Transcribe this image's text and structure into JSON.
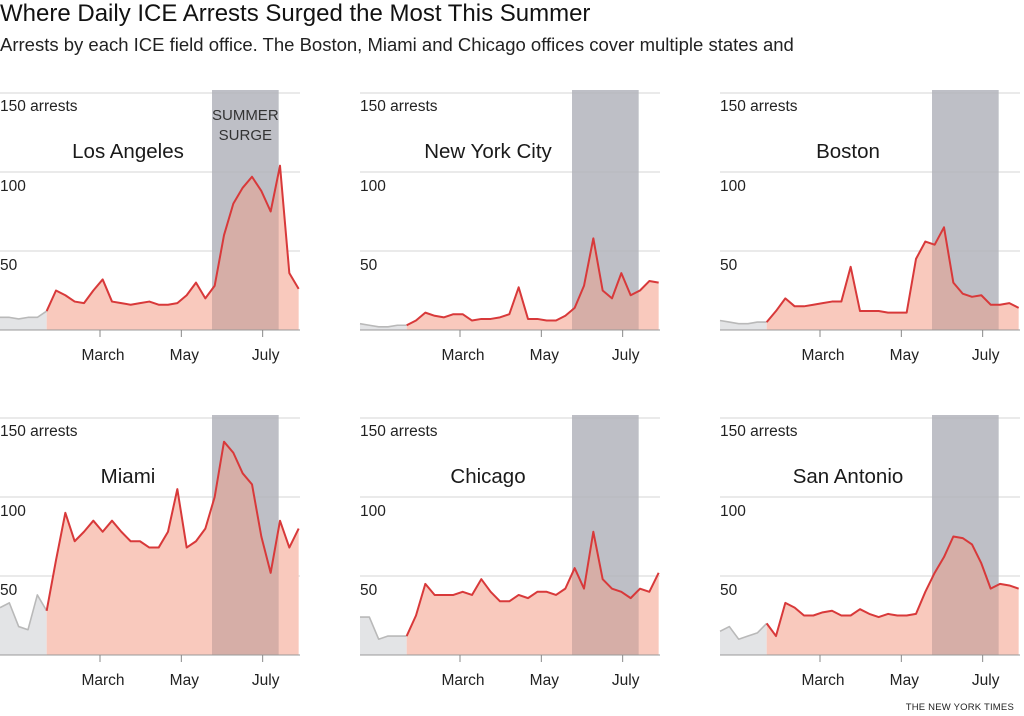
{
  "header": {
    "title": "Where Daily ICE Arrests Surged the Most This Summer",
    "subtitle": "Arrests by each ICE field office. The Boston, Miami and Chicago offices cover multiple states and"
  },
  "credit": "THE NEW YORK TIMES",
  "colors": {
    "line": "#d8393a",
    "fill": "#f9c9bd",
    "pre_line": "#b9b9b9",
    "pre_fill": "#e3e4e6",
    "surge_band": "#dcdde1",
    "grid": "#d6d6d6"
  },
  "chart_data": {
    "type": "area",
    "layout": "small multiples, 2 rows x 3 columns",
    "ylim": [
      0,
      150
    ],
    "yticks": [
      50,
      100,
      150
    ],
    "ytick_labels": [
      "50",
      "100",
      "150 arrests"
    ],
    "xticks": [
      "Mar 1",
      "May 1",
      "Jul 1"
    ],
    "xtick_labels": [
      "March",
      "May",
      "July"
    ],
    "grid": true,
    "highlight": {
      "label": "SUMMER SURGE",
      "start": "May 24",
      "end": "Jul 13"
    },
    "gray_until": "Jan 20",
    "x": [
      "Dec 16",
      "Dec 23",
      "Dec 30",
      "Jan 6",
      "Jan 13",
      "Jan 20",
      "Jan 27",
      "Feb 3",
      "Feb 10",
      "Feb 17",
      "Feb 24",
      "Mar 3",
      "Mar 10",
      "Mar 17",
      "Mar 24",
      "Mar 31",
      "Apr 7",
      "Apr 14",
      "Apr 21",
      "Apr 28",
      "May 5",
      "May 12",
      "May 19",
      "May 26",
      "Jun 2",
      "Jun 9",
      "Jun 16",
      "Jun 23",
      "Jun 30",
      "Jul 7",
      "Jul 14",
      "Jul 21",
      "Jul 28"
    ],
    "panels": [
      {
        "name": "Los Angeles",
        "values": [
          8,
          8,
          7,
          8,
          8,
          12,
          25,
          22,
          18,
          17,
          25,
          32,
          18,
          17,
          16,
          17,
          18,
          16,
          16,
          17,
          22,
          30,
          20,
          28,
          60,
          80,
          90,
          97,
          88,
          75,
          104,
          36,
          26
        ]
      },
      {
        "name": "New York City",
        "values": [
          4,
          3,
          2,
          2,
          3,
          3,
          6,
          11,
          9,
          8,
          10,
          10,
          6,
          7,
          7,
          8,
          10,
          27,
          7,
          7,
          6,
          6,
          9,
          14,
          28,
          58,
          25,
          20,
          36,
          22,
          25,
          31,
          30
        ]
      },
      {
        "name": "Boston",
        "values": [
          6,
          5,
          4,
          4,
          5,
          5,
          12,
          20,
          15,
          15,
          16,
          17,
          18,
          18,
          40,
          12,
          12,
          12,
          11,
          11,
          11,
          45,
          56,
          54,
          65,
          30,
          23,
          21,
          22,
          16,
          16,
          17,
          14
        ]
      },
      {
        "name": "Miami",
        "values": [
          30,
          33,
          18,
          16,
          38,
          28,
          60,
          90,
          72,
          78,
          85,
          78,
          85,
          78,
          72,
          72,
          68,
          68,
          78,
          105,
          68,
          72,
          80,
          100,
          135,
          128,
          115,
          108,
          75,
          52,
          85,
          68,
          80
        ]
      },
      {
        "name": "Chicago",
        "values": [
          24,
          24,
          10,
          12,
          12,
          12,
          25,
          45,
          38,
          38,
          38,
          40,
          38,
          48,
          40,
          34,
          34,
          38,
          36,
          40,
          40,
          38,
          42,
          55,
          42,
          78,
          48,
          42,
          40,
          36,
          42,
          40,
          52
        ]
      },
      {
        "name": "San Antonio",
        "values": [
          15,
          18,
          10,
          12,
          14,
          20,
          12,
          33,
          30,
          25,
          25,
          27,
          28,
          25,
          25,
          29,
          26,
          24,
          26,
          25,
          25,
          26,
          40,
          52,
          62,
          75,
          74,
          70,
          58,
          42,
          45,
          44,
          42
        ]
      }
    ]
  }
}
